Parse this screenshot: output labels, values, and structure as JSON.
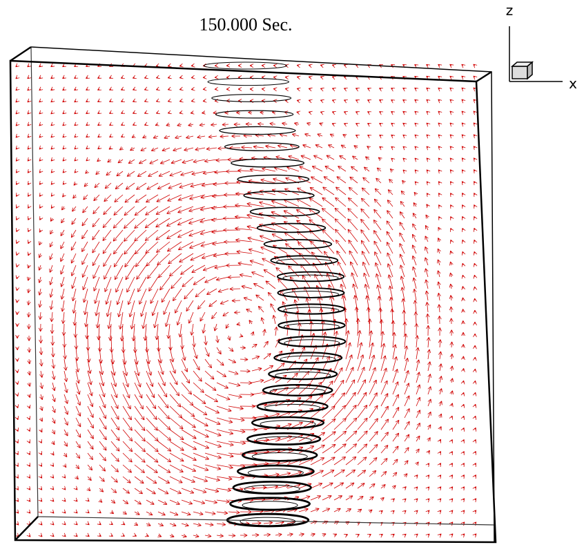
{
  "title": "150.000 Sec.",
  "axis_labels": {
    "vertical": "z",
    "horizontal": "x"
  }
}
